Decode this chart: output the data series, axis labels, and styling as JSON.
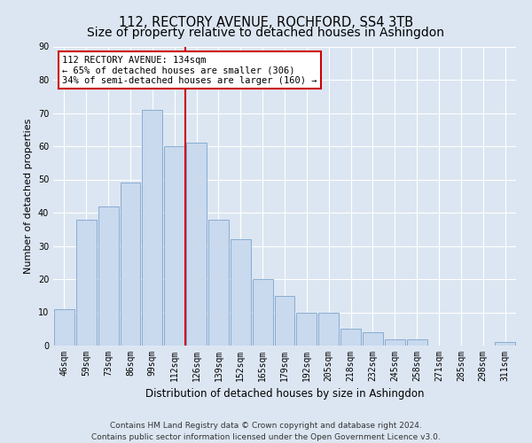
{
  "title": "112, RECTORY AVENUE, ROCHFORD, SS4 3TB",
  "subtitle": "Size of property relative to detached houses in Ashingdon",
  "xlabel": "Distribution of detached houses by size in Ashingdon",
  "ylabel": "Number of detached properties",
  "bar_labels": [
    "46sqm",
    "59sqm",
    "73sqm",
    "86sqm",
    "99sqm",
    "112sqm",
    "126sqm",
    "139sqm",
    "152sqm",
    "165sqm",
    "179sqm",
    "192sqm",
    "205sqm",
    "218sqm",
    "232sqm",
    "245sqm",
    "258sqm",
    "271sqm",
    "285sqm",
    "298sqm",
    "311sqm"
  ],
  "bar_values": [
    11,
    38,
    42,
    49,
    71,
    60,
    61,
    38,
    32,
    20,
    15,
    10,
    10,
    5,
    4,
    2,
    2,
    0,
    0,
    0,
    1
  ],
  "bar_color": "#c9d9ee",
  "bar_edgecolor": "#7ba4cc",
  "redline_index": 5.5,
  "annotation_title": "112 RECTORY AVENUE: 134sqm",
  "annotation_line1": "← 65% of detached houses are smaller (306)",
  "annotation_line2": "34% of semi-detached houses are larger (160) →",
  "annotation_box_color": "#ffffff",
  "annotation_box_edgecolor": "#cc0000",
  "redline_color": "#cc0000",
  "ylim": [
    0,
    90
  ],
  "yticks": [
    0,
    10,
    20,
    30,
    40,
    50,
    60,
    70,
    80,
    90
  ],
  "background_color": "#dce6f2",
  "plot_bg_color": "#dce6f2",
  "footer_line1": "Contains HM Land Registry data © Crown copyright and database right 2024.",
  "footer_line2": "Contains public sector information licensed under the Open Government Licence v3.0.",
  "title_fontsize": 10.5,
  "xlabel_fontsize": 8.5,
  "ylabel_fontsize": 8,
  "tick_fontsize": 7,
  "footer_fontsize": 6.5
}
